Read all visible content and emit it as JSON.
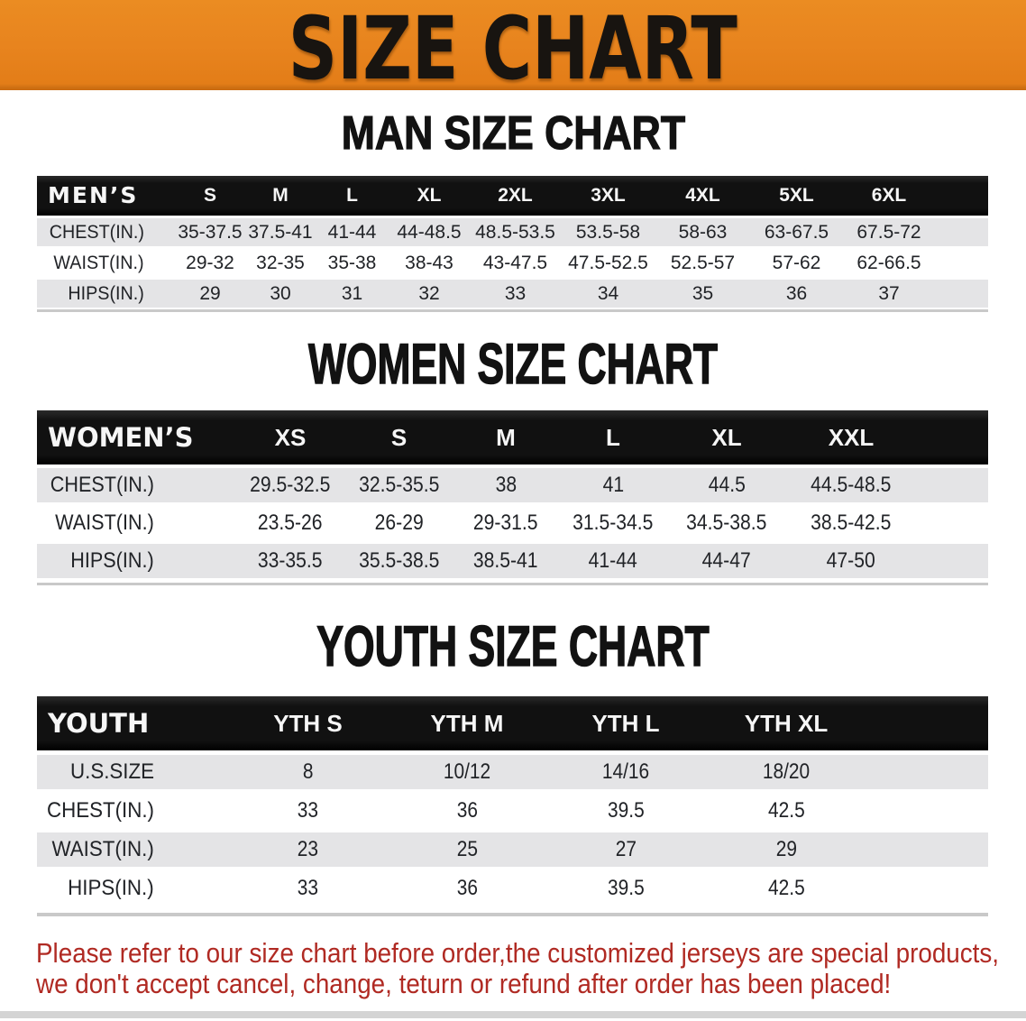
{
  "banner": {
    "title": "SIZE CHART",
    "background_color": "#e8831e",
    "text_color": "#181410"
  },
  "chart_data": [
    {
      "type": "table",
      "title": "MAN SIZE CHART",
      "columns": [
        "MEN’S",
        "S",
        "M",
        "L",
        "XL",
        "2XL",
        "3XL",
        "4XL",
        "5XL",
        "6XL"
      ],
      "rows": [
        [
          "CHEST(IN.)",
          "35-37.5",
          "37.5-41",
          "41-44",
          "44-48.5",
          "48.5-53.5",
          "53.5-58",
          "58-63",
          "63-67.5",
          "67.5-72"
        ],
        [
          "WAIST(IN.)",
          "29-32",
          "32-35",
          "35-38",
          "38-43",
          "43-47.5",
          "47.5-52.5",
          "52.5-57",
          "57-62",
          "62-66.5"
        ],
        [
          "HIPS(IN.)",
          "29",
          "30",
          "31",
          "32",
          "33",
          "34",
          "35",
          "36",
          "37"
        ]
      ]
    },
    {
      "type": "table",
      "title": "WOMEN SIZE CHART",
      "columns": [
        "WOMEN’S",
        "XS",
        "S",
        "M",
        "L",
        "XL",
        "XXL"
      ],
      "rows": [
        [
          "CHEST(IN.)",
          "29.5-32.5",
          "32.5-35.5",
          "38",
          "41",
          "44.5",
          "44.5-48.5"
        ],
        [
          "WAIST(IN.)",
          "23.5-26",
          "26-29",
          "29-31.5",
          "31.5-34.5",
          "34.5-38.5",
          "38.5-42.5"
        ],
        [
          "HIPS(IN.)",
          "33-35.5",
          "35.5-38.5",
          "38.5-41",
          "41-44",
          "44-47",
          "47-50"
        ]
      ]
    },
    {
      "type": "table",
      "title": "YOUTH SIZE CHART",
      "columns": [
        "YOUTH",
        "YTH S",
        "YTH M",
        "YTH L",
        "YTH XL"
      ],
      "rows": [
        [
          "U.S.SIZE",
          "8",
          "10/12",
          "14/16",
          "18/20"
        ],
        [
          "CHEST(IN.)",
          "33",
          "36",
          "39.5",
          "42.5"
        ],
        [
          "WAIST(IN.)",
          "23",
          "25",
          "27",
          "29"
        ],
        [
          "HIPS(IN.)",
          "33",
          "36",
          "39.5",
          "42.5"
        ]
      ]
    }
  ],
  "table_style": {
    "header_background": "#141414",
    "header_text_color": "#f6f6f6",
    "stripe_row_color": "#e4e4e6",
    "body_text_color": "#212327"
  },
  "bottom_strip_color": "#d4d4d4",
  "disclaimer": {
    "lines": [
      "Please refer to our size chart before order,the customized jerseys are special products,",
      "we don't accept cancel, change, teturn or refund after order has been placed!"
    ],
    "text_color": "#b02a23"
  }
}
